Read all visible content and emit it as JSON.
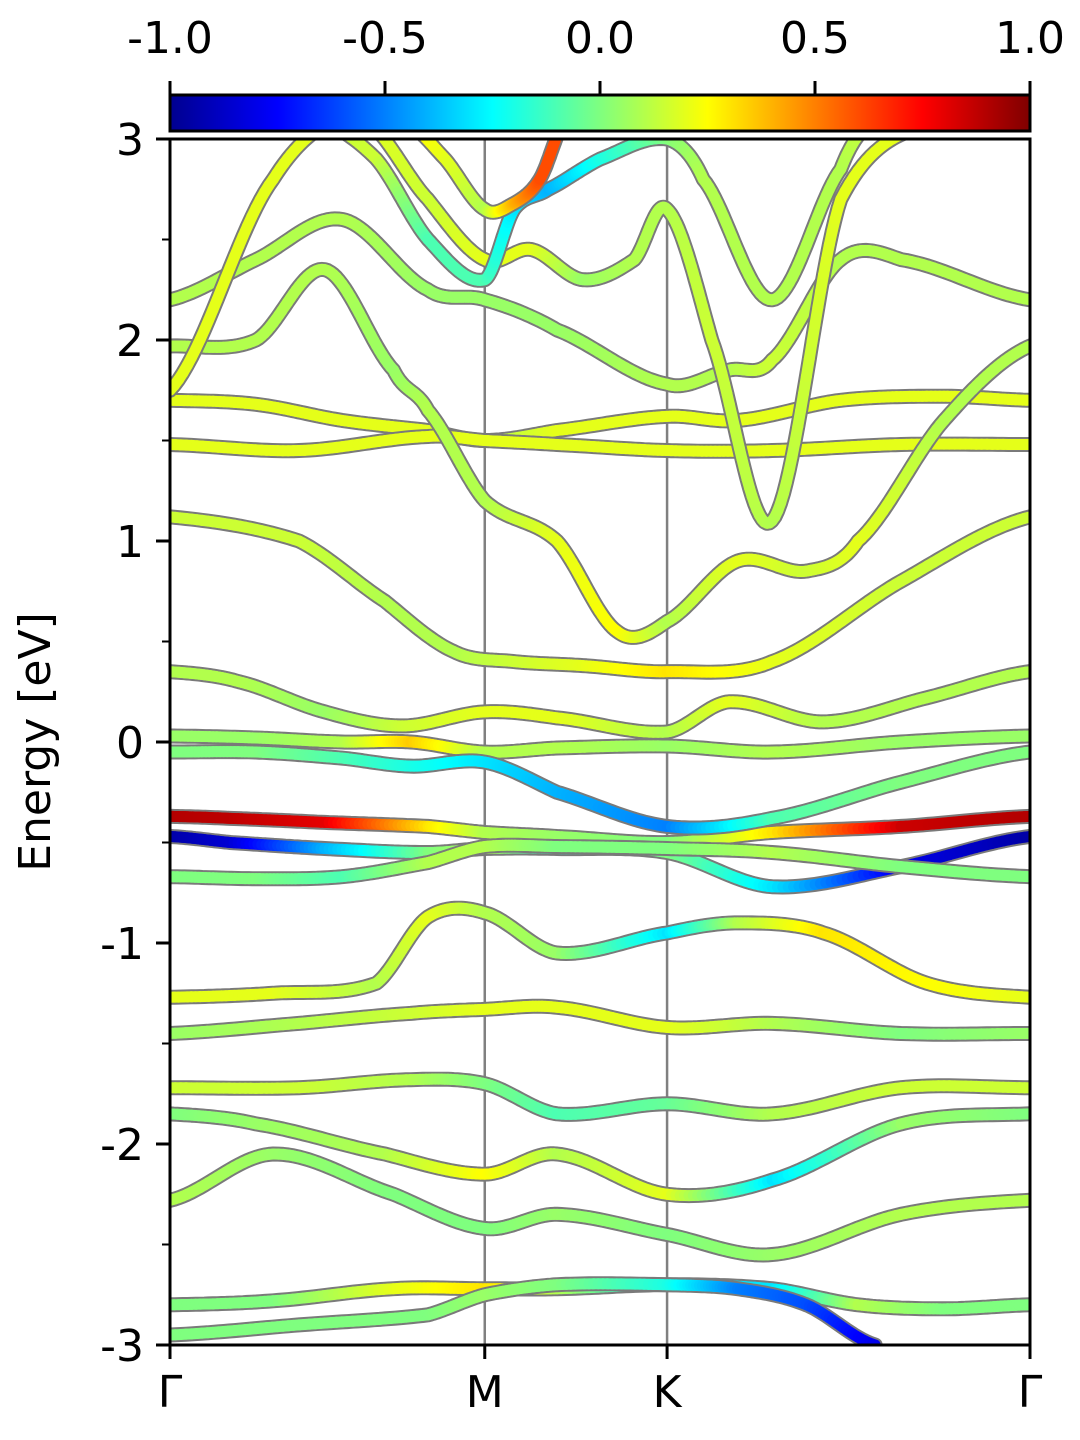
{
  "chart_data": {
    "type": "line",
    "ylabel": "Energy [eV]",
    "xlabel": "",
    "ylim": [
      -3,
      3
    ],
    "yticks_major": [
      "-3",
      "-2",
      "-1",
      "0",
      "1",
      "2",
      "3"
    ],
    "yticks_major_values": [
      -3,
      -2,
      -1,
      0,
      1,
      2,
      3
    ],
    "xticks": [
      {
        "label": "Γ",
        "pos": 0.0
      },
      {
        "label": "M",
        "pos": 0.366
      },
      {
        "label": "K",
        "pos": 0.578
      },
      {
        "label": "Γ",
        "pos": 1.0
      }
    ],
    "colorbar": {
      "colormap": "jet",
      "range": [
        -1.0,
        1.0
      ],
      "tick_labels": [
        "-1.0",
        "-0.5",
        "0.0",
        "0.5",
        "1.0"
      ],
      "tick_values": [
        -1.0,
        -0.5,
        0.0,
        0.5,
        1.0
      ]
    },
    "bands": [
      {
        "x": [
          0,
          0.07,
          0.18,
          0.3,
          0.366,
          0.45,
          0.578,
          0.7,
          0.85,
          1.0
        ],
        "y": [
          -0.37,
          -0.38,
          -0.4,
          -0.42,
          -0.45,
          -0.47,
          -0.5,
          -0.45,
          -0.42,
          -0.37
        ],
        "c": [
          0.9,
          0.88,
          0.8,
          0.3,
          0.1,
          0.05,
          0.0,
          0.3,
          0.85,
          0.9
        ]
      },
      {
        "x": [
          0,
          0.07,
          0.18,
          0.3,
          0.366,
          0.45,
          0.578,
          0.7,
          0.85,
          1.0
        ],
        "y": [
          -0.47,
          -0.5,
          -0.53,
          -0.55,
          -0.53,
          -0.53,
          -0.55,
          -0.72,
          -0.62,
          -0.47
        ],
        "c": [
          -0.95,
          -0.85,
          -0.4,
          0.0,
          0.1,
          -0.2,
          0.0,
          -0.3,
          -0.8,
          -0.95
        ]
      },
      {
        "x": [
          0,
          0.1,
          0.2,
          0.3,
          0.366,
          0.45,
          0.578,
          0.7,
          0.85,
          1.0
        ],
        "y": [
          -0.67,
          -0.68,
          -0.67,
          -0.6,
          -0.52,
          -0.52,
          -0.53,
          -0.55,
          -0.62,
          -0.67
        ],
        "c": [
          0.0,
          0.0,
          -0.1,
          0.1,
          0.1,
          0.0,
          0.0,
          0.1,
          0.0,
          0.0
        ]
      },
      {
        "x": [
          0,
          0.08,
          0.18,
          0.27,
          0.366,
          0.45,
          0.578,
          0.65,
          0.76,
          0.88,
          1.0
        ],
        "y": [
          0.35,
          0.3,
          0.15,
          0.08,
          0.15,
          0.12,
          0.05,
          0.2,
          0.1,
          0.22,
          0.35
        ],
        "c": [
          0.1,
          0.1,
          0.05,
          0.15,
          0.2,
          0.2,
          0.1,
          0.2,
          0.1,
          0.1,
          0.1
        ]
      },
      {
        "x": [
          0,
          0.1,
          0.2,
          0.28,
          0.366,
          0.45,
          0.578,
          0.7,
          0.85,
          1.0
        ],
        "y": [
          0.03,
          0.02,
          0.0,
          0.0,
          -0.05,
          -0.03,
          -0.02,
          -0.05,
          0.0,
          0.03
        ],
        "c": [
          0.05,
          0.05,
          0.1,
          0.35,
          0.1,
          0.1,
          0.05,
          0.1,
          0.05,
          0.05
        ]
      },
      {
        "x": [
          0,
          0.1,
          0.2,
          0.28,
          0.366,
          0.45,
          0.578,
          0.7,
          0.85,
          1.0
        ],
        "y": [
          -0.05,
          -0.05,
          -0.08,
          -0.12,
          -0.1,
          -0.25,
          -0.42,
          -0.38,
          -0.2,
          -0.05
        ],
        "c": [
          0.0,
          0.0,
          -0.1,
          -0.2,
          -0.3,
          -0.4,
          -0.5,
          -0.1,
          0.0,
          0.0
        ]
      },
      {
        "x": [
          0,
          0.12,
          0.24,
          0.3,
          0.366,
          0.45,
          0.578,
          0.66,
          0.76,
          0.88,
          1.0
        ],
        "y": [
          -1.27,
          -1.25,
          -1.2,
          -0.87,
          -0.85,
          -1.05,
          -0.95,
          -0.9,
          -0.95,
          -1.2,
          -1.27
        ],
        "c": [
          0.2,
          0.2,
          0.1,
          0.2,
          0.1,
          0.05,
          -0.3,
          0.1,
          0.3,
          0.25,
          0.2
        ]
      },
      {
        "x": [
          0,
          0.15,
          0.28,
          0.366,
          0.45,
          0.578,
          0.7,
          0.85,
          1.0
        ],
        "y": [
          -1.45,
          -1.4,
          -1.35,
          -1.33,
          -1.32,
          -1.42,
          -1.4,
          -1.45,
          -1.45
        ],
        "c": [
          0.05,
          0.1,
          0.15,
          0.2,
          0.2,
          0.2,
          0.1,
          0.0,
          0.05
        ]
      },
      {
        "x": [
          0,
          0.15,
          0.28,
          0.366,
          0.45,
          0.578,
          0.7,
          0.85,
          1.0
        ],
        "y": [
          -1.72,
          -1.72,
          -1.68,
          -1.7,
          -1.85,
          -1.8,
          -1.85,
          -1.72,
          -1.72
        ],
        "c": [
          0.15,
          0.15,
          0.1,
          0.0,
          -0.1,
          -0.05,
          0.1,
          0.15,
          0.15
        ]
      },
      {
        "x": [
          0,
          0.1,
          0.25,
          0.366,
          0.45,
          0.578,
          0.7,
          0.85,
          1.0
        ],
        "y": [
          -1.85,
          -1.9,
          -2.05,
          -2.15,
          -2.05,
          -2.25,
          -2.18,
          -1.9,
          -1.85
        ],
        "c": [
          0.0,
          0.05,
          0.1,
          0.25,
          0.1,
          0.2,
          -0.3,
          0.05,
          0.0
        ]
      },
      {
        "x": [
          0,
          0.12,
          0.26,
          0.366,
          0.45,
          0.578,
          0.7,
          0.85,
          1.0
        ],
        "y": [
          -2.28,
          -2.05,
          -2.25,
          -2.42,
          -2.35,
          -2.45,
          -2.55,
          -2.35,
          -2.28
        ],
        "c": [
          0.1,
          0.05,
          0.0,
          0.0,
          0.05,
          0.0,
          0.05,
          0.1,
          0.1
        ]
      },
      {
        "x": [
          0,
          0.12,
          0.26,
          0.366,
          0.45,
          0.578,
          0.7,
          0.8,
          0.9,
          1.0
        ],
        "y": [
          -2.8,
          -2.78,
          -2.72,
          -2.72,
          -2.72,
          -2.7,
          -2.72,
          -2.8,
          -2.82,
          -2.8
        ],
        "c": [
          0.0,
          0.0,
          0.2,
          0.3,
          0.1,
          -0.3,
          -0.3,
          0.1,
          0.0,
          0.0
        ]
      },
      {
        "x": [
          0,
          0.15,
          0.3,
          0.366,
          0.45,
          0.578,
          0.66,
          0.74,
          0.82
        ],
        "y": [
          -2.95,
          -2.9,
          -2.85,
          -2.75,
          -2.7,
          -2.7,
          -2.72,
          -2.8,
          -3.0
        ],
        "c": [
          0.0,
          0.0,
          0.0,
          0.05,
          0.0,
          -0.2,
          -0.5,
          -0.6,
          -0.8
        ]
      },
      {
        "x": [
          0,
          0.15,
          0.25,
          0.33,
          0.4,
          0.48,
          0.578,
          0.7,
          0.85,
          1.0
        ],
        "y": [
          1.12,
          1.0,
          0.7,
          0.45,
          0.4,
          0.38,
          0.35,
          0.4,
          0.8,
          1.12
        ],
        "c": [
          0.15,
          0.15,
          0.1,
          0.1,
          0.15,
          0.2,
          0.3,
          0.2,
          0.15,
          0.15
        ]
      },
      {
        "x": [
          0,
          0.1,
          0.2,
          0.3,
          0.366,
          0.45,
          0.578,
          0.66,
          0.78,
          0.9,
          1.0
        ],
        "y": [
          1.7,
          1.68,
          1.6,
          1.55,
          1.5,
          1.55,
          1.62,
          1.6,
          1.7,
          1.72,
          1.7
        ],
        "c": [
          0.2,
          0.2,
          0.2,
          0.2,
          0.1,
          0.2,
          0.2,
          0.2,
          0.2,
          0.2,
          0.2
        ]
      },
      {
        "x": [
          0,
          0.15,
          0.3,
          0.366,
          0.45,
          0.578,
          0.7,
          0.85,
          1.0
        ],
        "y": [
          1.48,
          1.45,
          1.52,
          1.5,
          1.48,
          1.45,
          1.45,
          1.48,
          1.48
        ],
        "c": [
          0.2,
          0.2,
          0.2,
          0.2,
          0.2,
          0.2,
          0.2,
          0.2,
          0.2
        ]
      },
      {
        "x": [
          0,
          0.1,
          0.2,
          0.3,
          0.366,
          0.45,
          0.578,
          0.65,
          0.7,
          0.78,
          0.85,
          1.0
        ],
        "y": [
          2.2,
          2.4,
          2.6,
          2.25,
          2.2,
          2.05,
          1.78,
          1.85,
          1.9,
          2.4,
          2.4,
          2.2
        ],
        "c": [
          0.1,
          0.1,
          0.1,
          0.05,
          0.05,
          0.05,
          0.1,
          0.1,
          0.15,
          0.1,
          0.1,
          0.1
        ]
      },
      {
        "x": [
          0,
          0.1,
          0.18,
          0.26,
          0.3,
          0.366,
          0.45,
          0.52,
          0.578,
          0.66,
          0.74,
          0.8,
          0.9,
          1.0
        ],
        "y": [
          1.97,
          2.0,
          2.35,
          1.85,
          1.65,
          1.2,
          1.0,
          0.55,
          0.6,
          0.9,
          0.85,
          1.0,
          1.6,
          1.97
        ],
        "c": [
          0.1,
          0.1,
          0.1,
          0.05,
          0.1,
          0.1,
          0.2,
          0.25,
          0.1,
          0.2,
          0.15,
          0.2,
          0.1,
          0.1
        ]
      },
      {
        "x": [
          0,
          0.12,
          0.22,
          0.3,
          0.366,
          0.42,
          0.48,
          0.54,
          0.578,
          0.63,
          0.7,
          0.78,
          0.9,
          1.0
        ],
        "y": [
          1.75,
          2.8,
          3.1,
          2.7,
          2.4,
          2.45,
          2.3,
          2.4,
          2.65,
          2.0,
          1.1,
          2.7,
          3.1,
          3.1
        ],
        "c": [
          0.2,
          0.2,
          0.2,
          0.15,
          0.2,
          0.2,
          0.05,
          0.1,
          0.1,
          0.15,
          0.1,
          0.2,
          0.2,
          0.2
        ]
      },
      {
        "x": [
          0.17,
          0.24,
          0.3,
          0.366,
          0.4,
          0.44,
          0.5,
          0.578,
          0.62,
          0.7,
          0.78,
          0.82
        ],
        "y": [
          3.1,
          2.9,
          2.5,
          2.3,
          2.65,
          2.75,
          2.9,
          3.0,
          2.8,
          2.2,
          2.85,
          3.1
        ],
        "c": [
          0.15,
          0.15,
          -0.1,
          -0.1,
          -0.3,
          -0.4,
          -0.2,
          0.0,
          0.1,
          0.1,
          0.1,
          0.15
        ]
      },
      {
        "x": [
          0.27,
          0.32,
          0.366,
          0.4,
          0.43,
          0.46
        ],
        "y": [
          3.1,
          2.9,
          2.65,
          2.68,
          2.8,
          3.1
        ],
        "c": [
          0.3,
          0.2,
          0.1,
          0.4,
          0.6,
          0.6
        ]
      }
    ]
  }
}
